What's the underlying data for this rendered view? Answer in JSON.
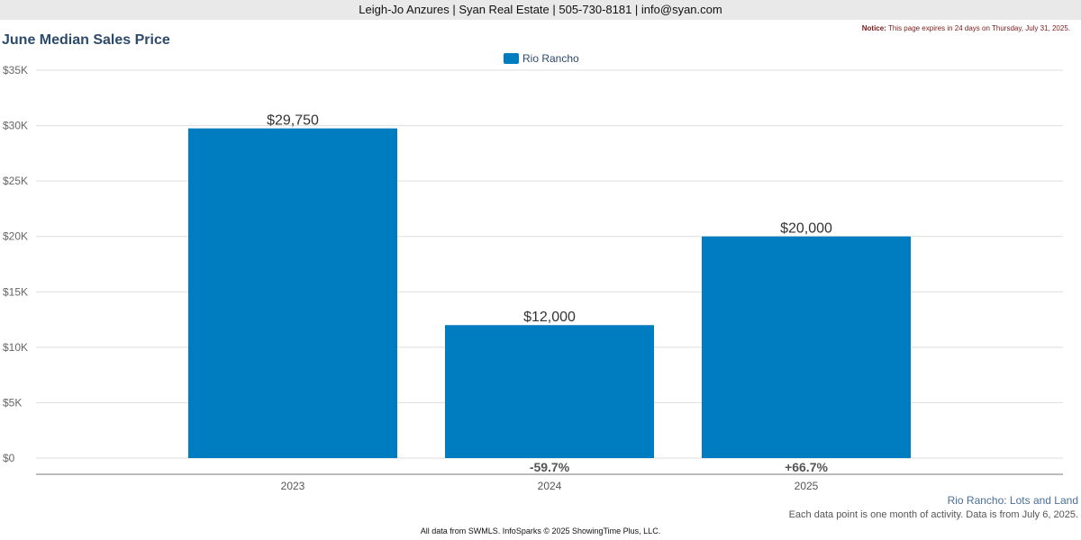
{
  "header": {
    "contact": "Leigh-Jo Anzures | Syan Real Estate | 505-730-8181 | info@syan.com"
  },
  "notice": {
    "label": "Notice:",
    "text": "This page expires in 24 days on Thursday, July 31, 2025."
  },
  "footer": {
    "credit": "All data from SWMLS. InfoSparks © 2025 ShowingTime Plus, LLC."
  },
  "colors": {
    "bar": "#007dc0",
    "title": "#2c4a6b"
  },
  "chart_data": {
    "type": "bar",
    "title": "June Median Sales Price",
    "subtitle": "Rio Rancho: Lots and Land",
    "note": "Each data point is one month of activity. Data is from July 6, 2025.",
    "categories": [
      "2023",
      "2024",
      "2025"
    ],
    "series": [
      {
        "name": "Rio Rancho",
        "values": [
          29750,
          12000,
          20000
        ],
        "value_labels": [
          "$29,750",
          "$12,000",
          "$20,000"
        ]
      }
    ],
    "changes": [
      "",
      "-59.7%",
      "+66.7%"
    ],
    "ylim": [
      0,
      35000
    ],
    "yticks": [
      0,
      5000,
      10000,
      15000,
      20000,
      25000,
      30000,
      35000
    ],
    "ytick_labels": [
      "$0",
      "$5K",
      "$10K",
      "$15K",
      "$20K",
      "$25K",
      "$30K",
      "$35K"
    ],
    "xlabel": "",
    "ylabel": "",
    "grid": true,
    "legend": "top-center"
  }
}
